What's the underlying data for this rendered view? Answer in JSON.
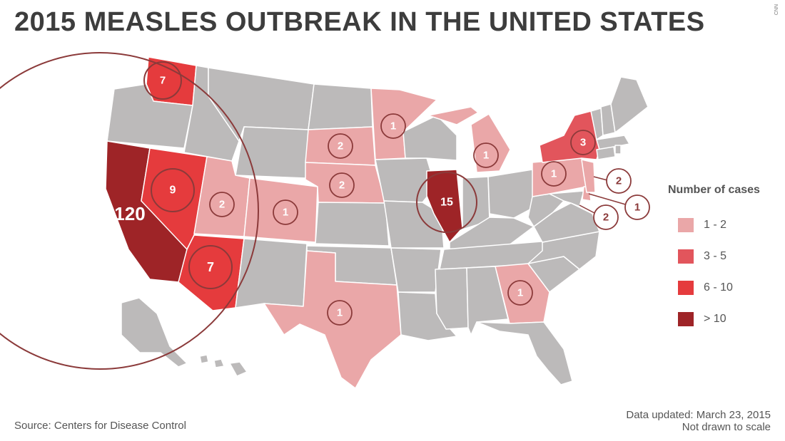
{
  "title": "2015 MEASLES OUTBREAK IN THE UNITED STATES",
  "watermark": "CNN",
  "colors": {
    "no_cases": "#bcbaba",
    "range_1_2": "#eaa7a8",
    "range_3_5": "#e2555c",
    "range_6_10": "#e53b3d",
    "range_gt_10": "#9e2427",
    "circle_stroke": "#8b3a3a",
    "state_border": "#ffffff"
  },
  "legend": {
    "title": "Number of cases",
    "items": [
      {
        "label": "1 - 2",
        "color": "#eaa7a8"
      },
      {
        "label": "3 - 5",
        "color": "#e2555c"
      },
      {
        "label": "6 - 10",
        "color": "#e53b3d"
      },
      {
        "label": "> 10",
        "color": "#9e2427"
      }
    ]
  },
  "state_cases": [
    {
      "state": "California",
      "cases": "120"
    },
    {
      "state": "Illinois",
      "cases": "15"
    },
    {
      "state": "Nevada",
      "cases": "9"
    },
    {
      "state": "Washington",
      "cases": "7"
    },
    {
      "state": "Arizona",
      "cases": "7"
    },
    {
      "state": "New York",
      "cases": "3"
    },
    {
      "state": "Utah",
      "cases": "2"
    },
    {
      "state": "South Dakota",
      "cases": "2"
    },
    {
      "state": "Nebraska",
      "cases": "2"
    },
    {
      "state": "New Jersey",
      "cases": "2"
    },
    {
      "state": "Washington DC",
      "cases": "2"
    },
    {
      "state": "Colorado",
      "cases": "1"
    },
    {
      "state": "Minnesota",
      "cases": "1"
    },
    {
      "state": "Michigan",
      "cases": "1"
    },
    {
      "state": "Pennsylvania",
      "cases": "1"
    },
    {
      "state": "Delaware",
      "cases": "1"
    },
    {
      "state": "Texas",
      "cases": "1"
    },
    {
      "state": "Georgia",
      "cases": "1"
    }
  ],
  "footer": {
    "source": "Source: Centers for Disease Control",
    "updated": "Data updated: March 23, 2015",
    "note": "Not drawn to scale"
  }
}
